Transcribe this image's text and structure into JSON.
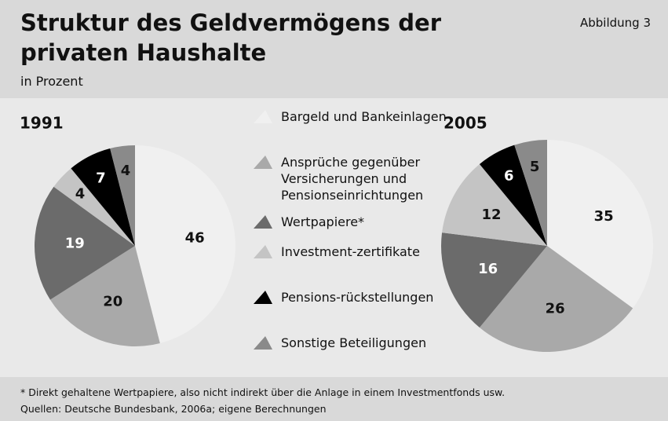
{
  "title": "Struktur des Geldvermögens der privaten Haushalte",
  "subtitle": "in Prozent",
  "badge": "Abbildung 3",
  "footnote": "* Direkt gehaltene Wertpapiere, also nicht indirekt über die Anlage in einem Investmentfonds usw.",
  "source": "Quellen: Deutsche Bundesbank, 2006a; eigene Berechnungen",
  "chart_data": [
    {
      "type": "pie",
      "title": "1991",
      "categories": [
        "Bargeld und Bankeinlagen",
        "Ansprüche gegenüber Versicherungen und Pensionseinrichtungen",
        "Wertpapiere*",
        "Investment-zertifikate",
        "Pensions-rückstellungen",
        "Sonstige Beteiligungen"
      ],
      "values": [
        46,
        20,
        19,
        4,
        7,
        4
      ],
      "colors": [
        "#f0f0f0",
        "#a9a9a9",
        "#6b6b6b",
        "#c4c4c4",
        "#000000",
        "#8a8a8a"
      ]
    },
    {
      "type": "pie",
      "title": "2005",
      "categories": [
        "Bargeld und Bankeinlagen",
        "Ansprüche gegenüber Versicherungen und Pensionseinrichtungen",
        "Wertpapiere*",
        "Investment-zertifikate",
        "Pensions-rückstellungen",
        "Sonstige Beteiligungen"
      ],
      "values": [
        35,
        26,
        16,
        12,
        6,
        5
      ],
      "colors": [
        "#f0f0f0",
        "#a9a9a9",
        "#6b6b6b",
        "#c4c4c4",
        "#000000",
        "#8a8a8a"
      ]
    }
  ]
}
